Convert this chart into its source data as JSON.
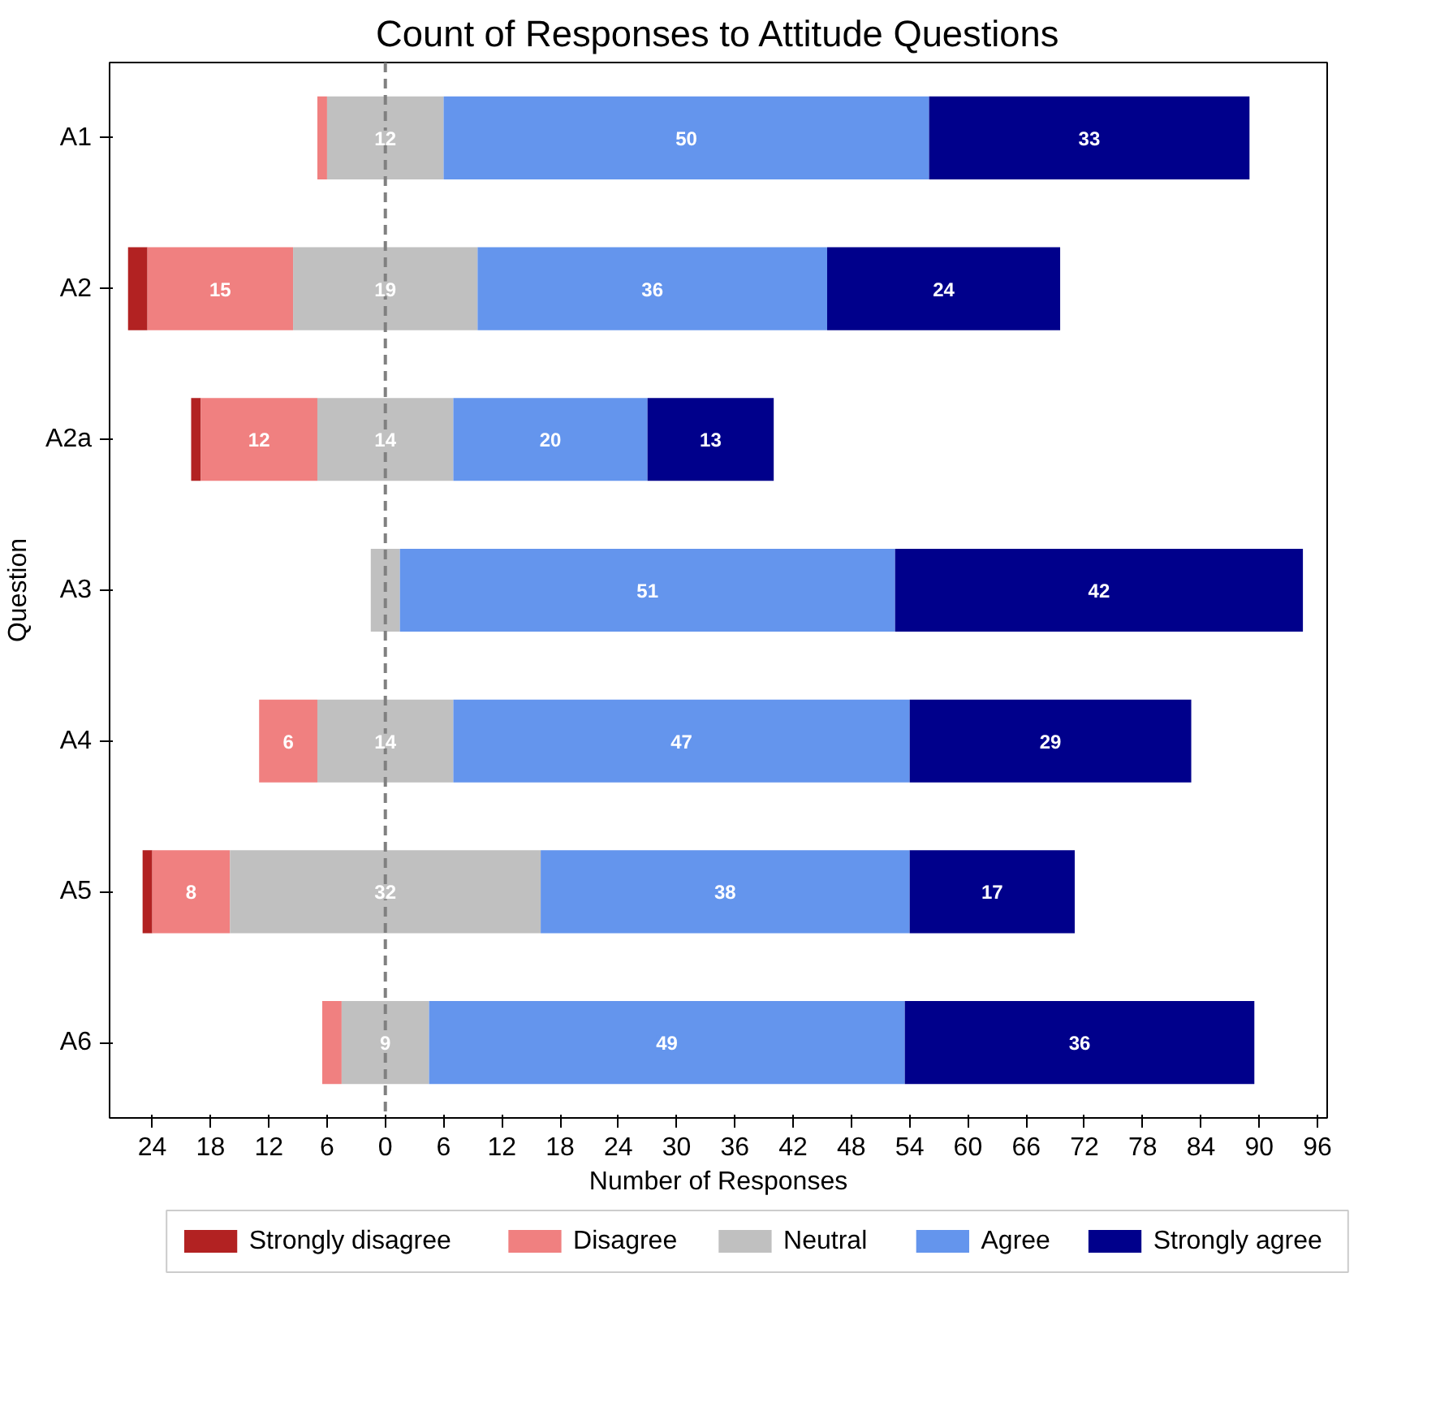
{
  "chart_data": {
    "type": "bar",
    "title": "Count of Responses to Attitude Questions",
    "xlabel": "Number of Responses",
    "ylabel": "Question",
    "orientation": "horizontal",
    "categories": [
      "A1",
      "A2",
      "A2a",
      "A3",
      "A4",
      "A5",
      "A6"
    ],
    "series": [
      {
        "name": "Strongly disagree",
        "color": "#b22222",
        "values": [
          null,
          2,
          1,
          null,
          null,
          1,
          null
        ],
        "base": [
          null,
          -26.5,
          -20,
          null,
          null,
          -25,
          null
        ],
        "value_labels": [
          null,
          null,
          null,
          null,
          null,
          null,
          null
        ]
      },
      {
        "name": "Disagree",
        "color": "#f08080",
        "values": [
          1,
          15,
          12,
          null,
          6,
          8,
          2
        ],
        "base": [
          -7,
          -24.5,
          -19,
          null,
          -13,
          -24,
          -6.5
        ],
        "value_labels": [
          null,
          "15",
          "12",
          null,
          "6",
          "8",
          null
        ]
      },
      {
        "name": "Neutral",
        "color": "#c0c0c0",
        "values": [
          12,
          19,
          14,
          3,
          14,
          32,
          9
        ],
        "base": [
          -6,
          -9.5,
          -7,
          -1.5,
          -7,
          -16,
          -4.5
        ],
        "value_labels": [
          "12",
          "19",
          "14",
          null,
          "14",
          "32",
          "9"
        ]
      },
      {
        "name": "Agree",
        "color": "#6495ed",
        "values": [
          50,
          36,
          20,
          51,
          47,
          38,
          49
        ],
        "base": [
          6,
          9.5,
          7,
          1.5,
          7,
          16,
          4.5
        ],
        "value_labels": [
          "50",
          "36",
          "20",
          "51",
          "47",
          "38",
          "49"
        ]
      },
      {
        "name": "Strongly agree",
        "color": "#00008b",
        "values": [
          33,
          24,
          13,
          42,
          29,
          17,
          36
        ],
        "base": [
          56,
          45.5,
          27,
          52.5,
          54,
          54,
          53.5
        ],
        "value_labels": [
          "33",
          "24",
          "13",
          "42",
          "29",
          "17",
          "36"
        ]
      }
    ],
    "xlim": [
      -28.4,
      97
    ],
    "xticks": [
      {
        "value": -24,
        "label": "24"
      },
      {
        "value": -18,
        "label": "18"
      },
      {
        "value": -12,
        "label": "12"
      },
      {
        "value": -6,
        "label": "6"
      },
      0,
      6,
      12,
      18,
      24,
      30,
      36,
      42,
      48,
      54,
      60,
      66,
      72,
      78,
      84,
      90,
      96
    ],
    "ref_lines": [
      {
        "axis": "x",
        "value": 0,
        "color": "#808080",
        "line_style": "dashed"
      }
    ],
    "grid": false,
    "legend": "bottom"
  }
}
